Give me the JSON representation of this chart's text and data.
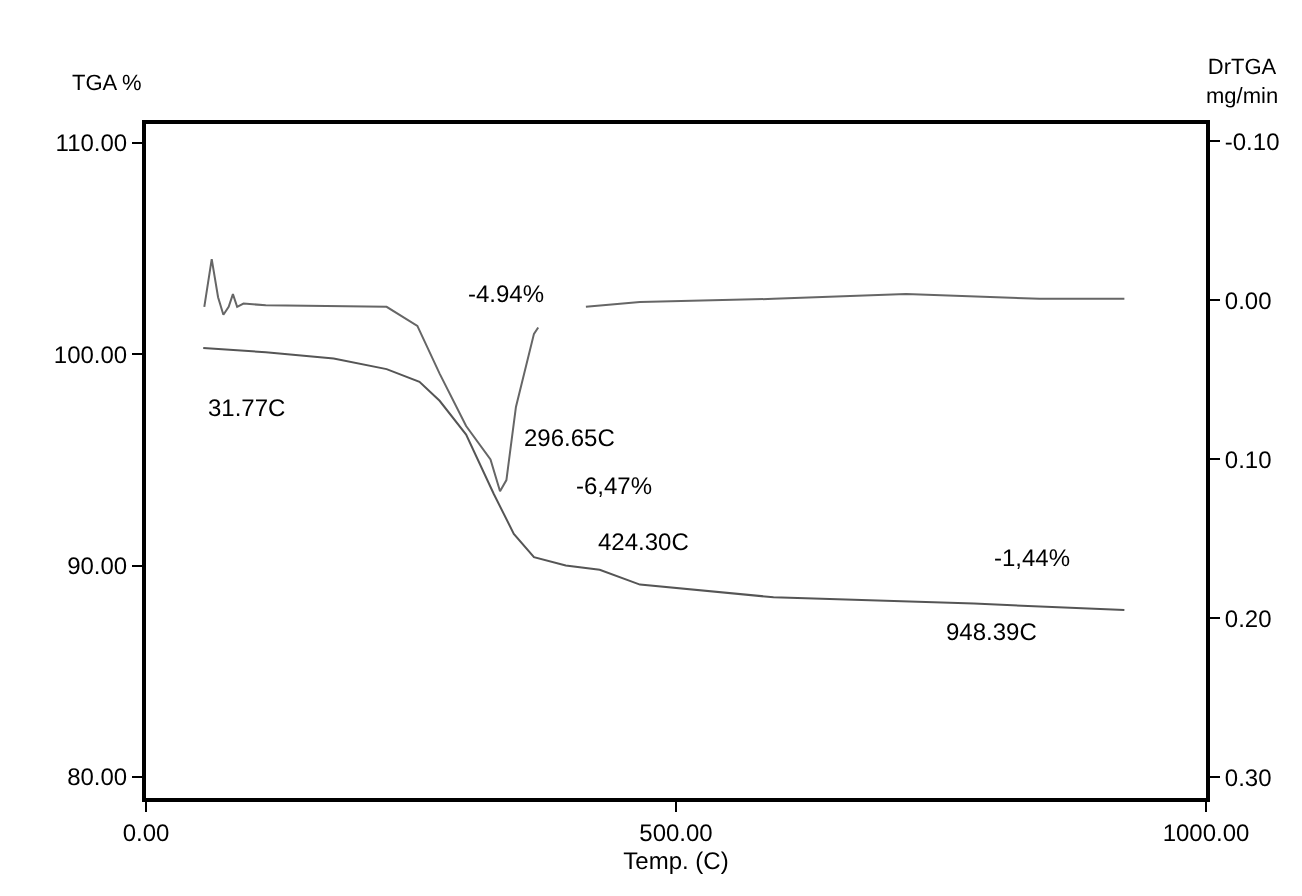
{
  "chart_data": {
    "type": "line",
    "xlabel": "Temp. (C)",
    "ylabel": "TGA %",
    "y2label": "DrTGA\nmg/min",
    "xlim": [
      0,
      1000
    ],
    "xticks": [
      {
        "value": 0,
        "label": "0.00"
      },
      {
        "value": 500,
        "label": "500.00"
      },
      {
        "value": 1000,
        "label": "1000.00"
      }
    ],
    "ylim": [
      79.0,
      110.9
    ],
    "yticks": [
      {
        "value": 80,
        "label": "80.00"
      },
      {
        "value": 90,
        "label": "90.00"
      },
      {
        "value": 100,
        "label": "100.00"
      },
      {
        "value": 110,
        "label": "110.00"
      }
    ],
    "y2lim": [
      0.313,
      -0.111
    ],
    "y2ticks": [
      {
        "value": -0.1,
        "label": "-0.10"
      },
      {
        "value": 0,
        "label": "0.00"
      },
      {
        "value": 0.1,
        "label": "0.10"
      },
      {
        "value": 0.2,
        "label": "0.20"
      },
      {
        "value": 0.3,
        "label": "0.30"
      }
    ],
    "series": [
      {
        "color": "#555555",
        "x": [
          54,
          113,
          177,
          227,
          258,
          277,
          302,
          328,
          347,
          366,
          396,
          428,
          466,
          592,
          781,
          923
        ],
        "values": [
          100.3,
          100.1,
          99.8,
          99.3,
          98.7,
          97.8,
          96.2,
          93.4,
          91.5,
          90.4,
          90.0,
          89.8,
          89.1,
          88.5,
          88.2,
          87.9
        ]
      },
      {
        "color": "#666666",
        "axis": "y2",
        "x": [
          55,
          62,
          68,
          73,
          78,
          82,
          86,
          92,
          113,
          227,
          256,
          277,
          302,
          325,
          334,
          340,
          349,
          366,
          370,
          392,
          415,
          466,
          592,
          717,
          843,
          923
        ],
        "values": [
          0.004,
          -0.026,
          -0.002,
          0.009,
          0.004,
          -0.004,
          0.004,
          0.002,
          0.003,
          0.004,
          0.016,
          0.046,
          0.079,
          0.1,
          0.12,
          0.113,
          0.067,
          0.021,
          0.017,
          null,
          0.004,
          0.001,
          -0.001,
          -0.004,
          -0.001,
          -0.001
        ]
      }
    ],
    "annotations": [
      "-4.94%",
      "31.77C",
      "296.65C",
      "-6,47%",
      "424.30C",
      "-1,44%",
      "948.39C"
    ],
    "marker": "none",
    "line_style": "solid"
  }
}
